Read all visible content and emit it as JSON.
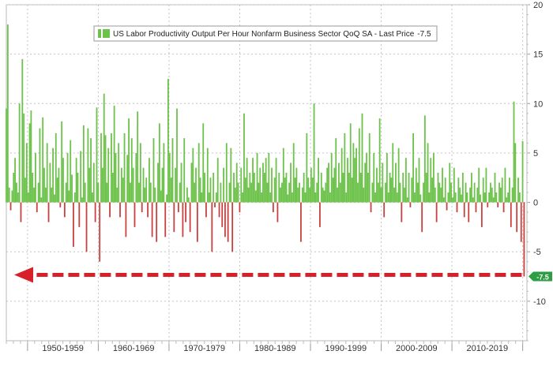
{
  "chart_data": {
    "type": "bar",
    "legend": {
      "text": "US Labor Productivity Output Per Hour Nonfarm Business Sector QoQ SA - Last Price",
      "last_value": "-7.5",
      "placement": "top-left"
    },
    "last_price_label": "-7.5",
    "y_ticks": [
      "20",
      "15",
      "10",
      "5",
      "0",
      "-5",
      "-10"
    ],
    "ylim": [
      -14,
      20
    ],
    "x_ticks": [
      "1950-1959",
      "1960-1969",
      "1970-1979",
      "1980-1989",
      "1990-1999",
      "2000-2009",
      "2010-2019"
    ],
    "grid": true,
    "x_range": [
      1947.0,
      2020.6
    ],
    "colors": {
      "positive": "#6cc24a",
      "negative": "#c8413f",
      "arrow": "#d8202a",
      "last_badge": "#2e9e44"
    },
    "annotation": "dashed-arrow-from-last-value-to-1947-low",
    "series": [
      {
        "values": [
          9.5,
          18.0,
          1.5,
          -0.8,
          1.2,
          3.0,
          4.5,
          2.0,
          1.0,
          10.0,
          -2.0,
          14.5,
          9.0,
          2.5,
          6.0,
          1.0,
          8.0,
          9.3,
          3.0,
          1.5,
          5.0,
          -1.0,
          2.0,
          7.5,
          0.5,
          8.6,
          3.5,
          1.5,
          6.0,
          -2.0,
          4.0,
          1.5,
          5.5,
          0.8,
          7.0,
          2.5,
          3.5,
          -0.5,
          8.2,
          4.5,
          -1.5,
          2.0,
          5.0,
          1.2,
          6.3,
          2.8,
          -4.5,
          1.0,
          4.5,
          3.0,
          -2.5,
          5.2,
          0.5,
          7.8,
          2.0,
          -5.0,
          7.5,
          3.5,
          6.5,
          1.0,
          4.0,
          -2.0,
          9.6,
          2.0,
          -6.0,
          7.0,
          3.5,
          11.0,
          6.8,
          2.0,
          5.5,
          -1.5,
          7.0,
          3.0,
          9.8,
          5.0,
          1.5,
          6.0,
          -1.5,
          3.5,
          2.5,
          7.0,
          -3.5,
          4.8,
          8.5,
          2.0,
          6.5,
          3.5,
          -2.5,
          5.0,
          9.2,
          2.0,
          6.0,
          -1.0,
          3.5,
          1.5,
          2.5,
          -1.5,
          4.5,
          2.0,
          -3.5,
          6.5,
          1.5,
          -4.0,
          4.0,
          8.0,
          1.2,
          3.5,
          6.0,
          -3.5,
          0.8,
          12.5,
          5.0,
          2.5,
          6.5,
          -3.0,
          3.5,
          9.5,
          -1.0,
          2.0,
          4.0,
          -3.5,
          6.5,
          -2.0,
          1.5,
          0.5,
          -3.0,
          4.0,
          5.5,
          2.0,
          3.5,
          -4.0,
          6.0,
          2.5,
          1.0,
          8.0,
          3.0,
          -1.5,
          5.5,
          1.0,
          2.5,
          -5.0,
          3.0,
          -0.5,
          1.0,
          4.5,
          -1.5,
          2.0,
          -2.5,
          3.5,
          -3.5,
          6.0,
          -4.0,
          2.0,
          5.5,
          -5.0,
          3.0,
          1.5,
          4.0,
          2.0,
          -1.0,
          3.5,
          1.0,
          9.0,
          2.5,
          4.5,
          1.5,
          3.0,
          2.0,
          4.5,
          3.0,
          1.2,
          5.0,
          2.0,
          3.5,
          1.0,
          4.0,
          3.0,
          4.5,
          2.0,
          5.0,
          1.0,
          3.5,
          -1.0,
          2.5,
          4.5,
          -2.0,
          3.0,
          1.5,
          2.0,
          5.5,
          2.5,
          3.0,
          0.8,
          2.0,
          4.0,
          1.0,
          6.0,
          2.5,
          3.5,
          1.5,
          2.0,
          -4.0,
          1.5,
          3.0,
          1.0,
          7.0,
          2.5,
          1.5,
          3.5,
          2.5,
          10.0,
          1.0,
          2.0,
          4.5,
          -2.5,
          3.0,
          1.5,
          1.2,
          2.0,
          3.5,
          4.0,
          1.0,
          5.0,
          2.5,
          3.5,
          6.5,
          1.5,
          4.0,
          2.0,
          5.5,
          3.0,
          7.0,
          1.0,
          4.5,
          3.0,
          8.0,
          2.5,
          6.0,
          4.5,
          5.5,
          2.0,
          7.5,
          3.0,
          9.0,
          1.5,
          4.0,
          5.0,
          3.0,
          7.0,
          -1.0,
          2.0,
          5.0,
          1.0,
          3.5,
          2.0,
          8.5,
          1.5,
          4.0,
          -1.5,
          2.0,
          5.0,
          1.0,
          3.0,
          2.5,
          6.0,
          1.5,
          4.0,
          1.0,
          5.5,
          2.0,
          -2.0,
          3.0,
          1.5,
          4.5,
          0.5,
          3.0,
          -0.5,
          2.5,
          7.0,
          1.0,
          3.5,
          2.0,
          4.5,
          0.8,
          -3.0,
          2.0,
          8.8,
          3.0,
          6.0,
          1.0,
          4.5,
          2.5,
          5.0,
          1.5,
          -2.0,
          3.0,
          2.0,
          1.5,
          3.5,
          0.5,
          2.5,
          -0.8,
          1.0,
          4.0,
          2.0,
          0.5,
          3.5,
          1.0,
          -1.0,
          2.5,
          1.5,
          0.8,
          3.0,
          -1.5,
          2.0,
          1.0,
          -2.0,
          1.5,
          3.0,
          0.5,
          2.0,
          -1.0,
          1.5,
          3.5,
          0.8,
          -2.5,
          2.5,
          1.0,
          3.5,
          -0.5,
          1.0,
          2.0,
          1.5,
          0.5,
          3.0,
          1.0,
          -0.5,
          2.0,
          1.5,
          2.5,
          -1.0,
          3.5,
          0.5,
          1.0,
          2.5,
          -2.5,
          1.5,
          10.2,
          6.0,
          -3.0,
          2.5,
          1.0,
          -4.0,
          6.2,
          -7.5
        ]
      }
    ]
  }
}
